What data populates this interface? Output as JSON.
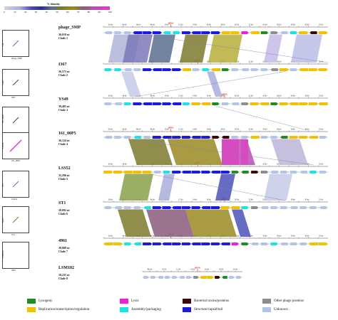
{
  "identity_legend": {
    "title": "% identity",
    "ticks": [
      "0",
      "10",
      "20",
      "30",
      "40",
      "50",
      "60",
      "70",
      "80",
      "90",
      "100"
    ]
  },
  "phages": [
    {
      "name": "phage_SMP",
      "size": "36,019 nt",
      "clade": "Clade 1"
    },
    {
      "name": "I367",
      "size": "36,573 nt",
      "clade": "Clade 2"
    },
    {
      "name": "YS49",
      "size": "39,405 nt",
      "clade": "Clade 3"
    },
    {
      "name": "161_00P5",
      "size": "36,124 nt",
      "clade": "Clade 4"
    },
    {
      "name": "LSS52",
      "size": "35,296 nt",
      "clade": "Clade 5"
    },
    {
      "name": "ST1",
      "size": "39,092 nt",
      "clade": "Clade 6"
    },
    {
      "name": "4961",
      "size": "38,808 nt",
      "clade": "Clade 7"
    },
    {
      "name": "LSM102",
      "size": "18,231 nt",
      "clade": "Clade 8"
    }
  ],
  "dotplots": [
    {
      "x": "phage_SMP",
      "y": "I367"
    },
    {
      "x": "I367",
      "y": "YS49"
    },
    {
      "x": "YS49",
      "y": "161_00P5"
    },
    {
      "x": "161_00P5",
      "y": "LSS52"
    },
    {
      "x": "LSS52",
      "y": "ST1"
    },
    {
      "x": "ST1",
      "y": "4961"
    },
    {
      "x": "4961",
      "y": "LSM102"
    }
  ],
  "categories": [
    {
      "label": "Lysogeny",
      "color": "#1e8c1e"
    },
    {
      "label": "Replication/transcription/regulation",
      "color": "#f2c200"
    },
    {
      "label": "Lysis",
      "color": "#ee1fd6"
    },
    {
      "label": "Assembly/packaging",
      "color": "#19e5e8"
    },
    {
      "label": "Bacterial toxins/proteins",
      "color": "#3a0a0a"
    },
    {
      "label": "Structure/capsid/tail",
      "color": "#1a1ae0"
    },
    {
      "label": "Other phage proteins",
      "color": "#8d8d8d"
    },
    {
      "label": "Unknown",
      "color": "#b4c4e6"
    }
  ],
  "trna_label": "tRNA",
  "kb_ticks": [
    "2k kb",
    "4k kb",
    "6k kb",
    "8k kb",
    "10 kb",
    "12 kb",
    "14 kb",
    "16 kb",
    "18 kb",
    "20 kb",
    "22 kb",
    "24 kb",
    "26 kb",
    "28 kb",
    "30 kb",
    "32 kb",
    "34 kb",
    "36 kb",
    "38 kb"
  ]
}
